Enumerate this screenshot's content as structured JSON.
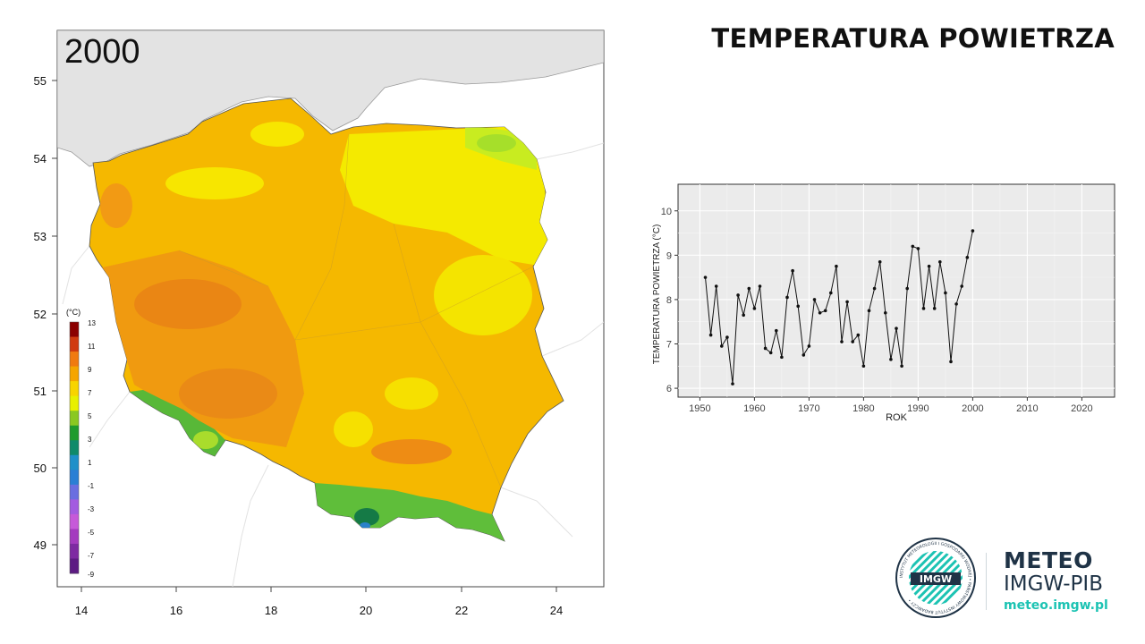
{
  "header": {
    "title": "TEMPERATURA POWIETRZA"
  },
  "map": {
    "year_label": "2000",
    "lat_ticks": [
      "55",
      "54",
      "53",
      "52",
      "51",
      "50",
      "49"
    ],
    "lon_ticks": [
      "14",
      "16",
      "18",
      "20",
      "22",
      "24"
    ],
    "legend": {
      "unit": "(°C)",
      "ticks": [
        "13",
        "11",
        "9",
        "7",
        "5",
        "3",
        "1",
        "-1",
        "-3",
        "-5",
        "-7",
        "-9"
      ],
      "colors": [
        "#8b0000",
        "#d03a0f",
        "#f07a10",
        "#f5a500",
        "#f8d400",
        "#e8f000",
        "#8ac821",
        "#1f9b2d",
        "#0f8a6a",
        "#1e90c9",
        "#2a7fd4",
        "#6a6ee0",
        "#a35ce0",
        "#c65ad9",
        "#a43bbf",
        "#7e2aa2",
        "#5d1b83"
      ]
    }
  },
  "chart_data": {
    "type": "line",
    "xlabel": "ROK",
    "ylabel": "TEMPERATURA POWIETRZA (°C)",
    "xlim": [
      1946,
      2026
    ],
    "ylim": [
      5.8,
      10.6
    ],
    "xticks": [
      1950,
      1960,
      1970,
      1980,
      1990,
      2000,
      2010,
      2020
    ],
    "yticks": [
      6,
      7,
      8,
      9,
      10
    ],
    "grid": true,
    "series": [
      {
        "x": [
          1951,
          1952,
          1953,
          1954,
          1955,
          1956,
          1957,
          1958,
          1959,
          1960,
          1961,
          1962,
          1963,
          1964,
          1965,
          1966,
          1967,
          1968,
          1969,
          1970,
          1971,
          1972,
          1973,
          1974,
          1975,
          1976,
          1977,
          1978,
          1979,
          1980,
          1981,
          1982,
          1983,
          1984,
          1985,
          1986,
          1987,
          1988,
          1989,
          1990,
          1991,
          1992,
          1993,
          1994,
          1995,
          1996,
          1997,
          1998,
          1999,
          2000
        ],
        "values": [
          8.5,
          7.2,
          8.3,
          6.95,
          7.15,
          6.1,
          8.1,
          7.65,
          8.25,
          7.8,
          8.3,
          6.9,
          6.8,
          7.3,
          6.7,
          8.05,
          8.65,
          7.85,
          6.75,
          6.95,
          8.0,
          7.7,
          7.75,
          8.15,
          8.75,
          7.05,
          7.95,
          7.05,
          7.2,
          6.5,
          7.75,
          8.25,
          8.85,
          7.7,
          6.65,
          7.35,
          6.5,
          8.25,
          9.2,
          9.15,
          7.8,
          8.75,
          7.8,
          8.85,
          8.15,
          6.6,
          7.9,
          8.3,
          8.95,
          9.55
        ]
      }
    ]
  },
  "logo": {
    "circle_text": "IMGW",
    "ring_text": "INSTYTUT METEOROLOGII I GOSPODARKI WODNEJ • PAŃSTWOWY INSTYTUT BADAWCZY •",
    "line1": "METEO",
    "line2": "IMGW-PIB",
    "url": "meteo.imgw.pl"
  }
}
